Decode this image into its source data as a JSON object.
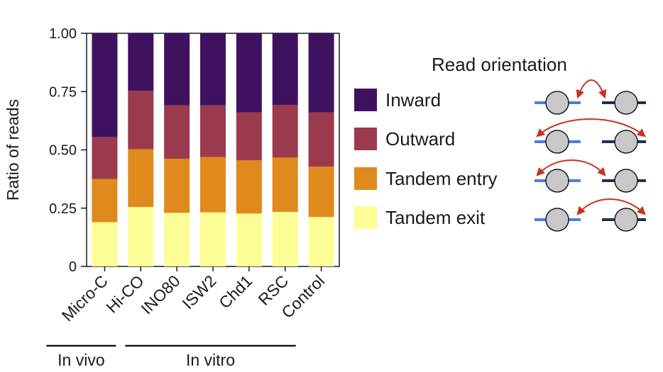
{
  "chart_data": {
    "type": "bar",
    "stacked": true,
    "ylabel": "Ratio of reads",
    "ylim": [
      0,
      1.0
    ],
    "yticks": [
      "0",
      "0.25",
      "0.50",
      "0.75",
      "1.00"
    ],
    "categories": [
      "Micro-C",
      "Hi-CO",
      "INO80",
      "ISW2",
      "Chd1",
      "RSC",
      "Control"
    ],
    "groups": [
      {
        "label": "In vivo",
        "categories": [
          "Micro-C"
        ]
      },
      {
        "label": "In vitro",
        "categories": [
          "Hi-CO",
          "INO80",
          "ISW2",
          "Chd1",
          "RSC"
        ]
      }
    ],
    "series": [
      {
        "name": "Tandem exit",
        "color": "#fdfd96",
        "values": [
          0.19,
          0.255,
          0.23,
          0.232,
          0.227,
          0.234,
          0.212
        ]
      },
      {
        "name": "Tandem entry",
        "color": "#e08a1e",
        "values": [
          0.185,
          0.248,
          0.232,
          0.237,
          0.228,
          0.233,
          0.216
        ]
      },
      {
        "name": "Outward",
        "color": "#9b3a4c",
        "values": [
          0.18,
          0.25,
          0.229,
          0.222,
          0.206,
          0.226,
          0.233
        ]
      },
      {
        "name": "Inward",
        "color": "#3f1260",
        "values": [
          0.445,
          0.247,
          0.309,
          0.309,
          0.339,
          0.307,
          0.339
        ]
      }
    ]
  },
  "legend": {
    "title": "Read orientation",
    "items": [
      {
        "label": "Inward",
        "color": "#3f1260"
      },
      {
        "label": "Outward",
        "color": "#9b3a4c"
      },
      {
        "label": "Tandem entry",
        "color": "#e08a1e"
      },
      {
        "label": "Tandem exit",
        "color": "#fdfd96"
      }
    ]
  },
  "diagram": {
    "nucleosome_color": "#c8c8c8",
    "left_dna_color": "#4a7fe0",
    "right_dna_color": "#1f2f5a",
    "arrow_color": "#c83222",
    "rows": [
      {
        "orientation": "inward"
      },
      {
        "orientation": "outward"
      },
      {
        "orientation": "tandem-entry"
      },
      {
        "orientation": "tandem-exit"
      }
    ]
  }
}
